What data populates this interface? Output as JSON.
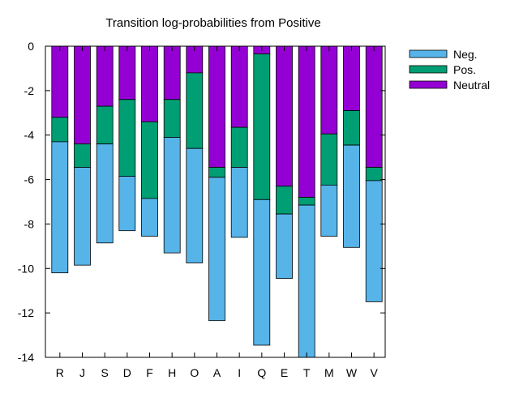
{
  "chart_data": {
    "type": "bar",
    "stacked": true,
    "title": "Transition log-probabilities from Positive",
    "categories": [
      "R",
      "J",
      "S",
      "D",
      "F",
      "H",
      "O",
      "A",
      "I",
      "Q",
      "E",
      "T",
      "M",
      "W",
      "V"
    ],
    "series": [
      {
        "name": "Neutral",
        "color": "#9400d3",
        "values": [
          -3.2,
          -4.4,
          -2.7,
          -2.4,
          -3.4,
          -2.4,
          -1.2,
          -5.45,
          -3.65,
          -0.35,
          -6.3,
          -6.8,
          -3.95,
          -2.9,
          -5.45
        ]
      },
      {
        "name": "Pos.",
        "color": "#009e73",
        "values": [
          -1.1,
          -1.05,
          -1.7,
          -3.45,
          -3.45,
          -1.7,
          -3.4,
          -0.45,
          -1.8,
          -6.55,
          -1.25,
          -0.35,
          -2.3,
          -1.55,
          -0.6
        ]
      },
      {
        "name": "Neg.",
        "color": "#56b4e9",
        "values": [
          -5.9,
          -4.4,
          -4.45,
          -2.45,
          -1.7,
          -5.2,
          -5.15,
          -6.45,
          -3.15,
          -6.55,
          -2.9,
          -6.85,
          -2.3,
          -4.6,
          -5.45
        ]
      }
    ],
    "legend_order": [
      "Neg.",
      "Pos.",
      "Neutral"
    ],
    "legend_position": "right",
    "ylim": [
      -14,
      0
    ],
    "yticks": [
      0,
      -2,
      -4,
      -6,
      -8,
      -10,
      -12,
      -14
    ],
    "xlabel": "",
    "ylabel": "",
    "grid": false
  }
}
